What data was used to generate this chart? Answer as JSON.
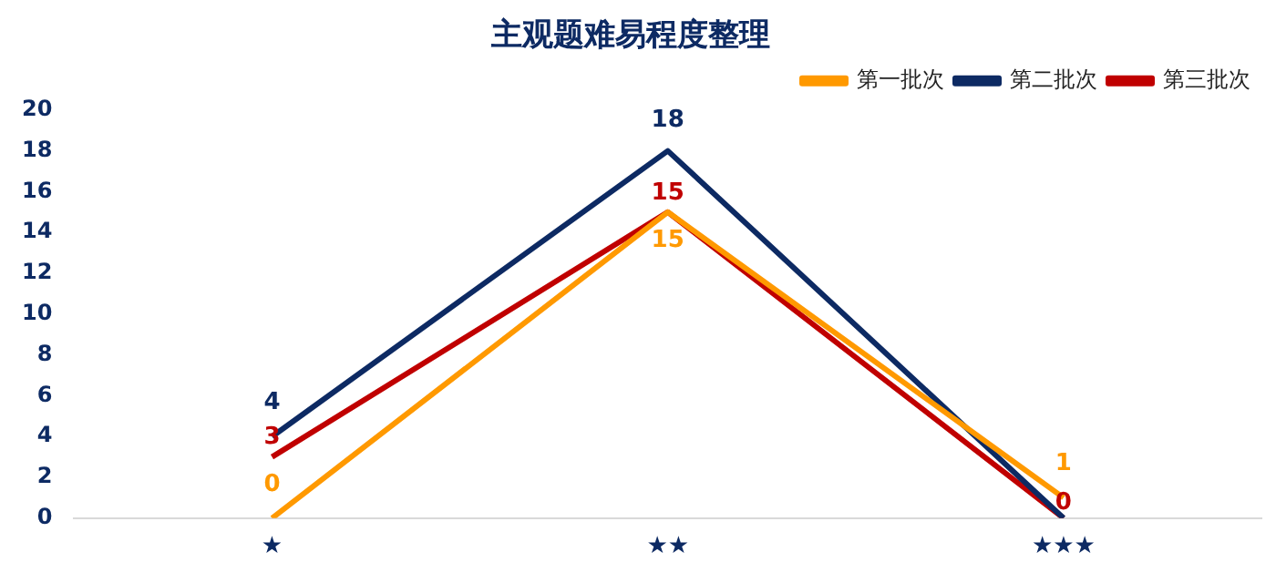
{
  "chart_data": {
    "type": "line",
    "title": "主观题难易程度整理",
    "categories": [
      "★",
      "★★",
      "★★★"
    ],
    "series": [
      {
        "name": "第一批次",
        "color": "#ff9900",
        "values": [
          0,
          15,
          1
        ],
        "value_labels": [
          "0",
          "15",
          "1"
        ]
      },
      {
        "name": "第二批次",
        "color": "#0d2a63",
        "values": [
          4,
          18,
          0
        ],
        "value_labels": [
          "4",
          "18",
          null
        ]
      },
      {
        "name": "第三批次",
        "color": "#c00000",
        "values": [
          3,
          15,
          0
        ],
        "value_labels": [
          "3",
          "15",
          "0"
        ]
      }
    ],
    "ylim": [
      0,
      20
    ],
    "yticks": [
      0,
      2,
      4,
      6,
      8,
      10,
      12,
      14,
      16,
      18,
      20
    ],
    "grid": false,
    "legend": "top right",
    "marker": "none",
    "line_style": "solid"
  }
}
